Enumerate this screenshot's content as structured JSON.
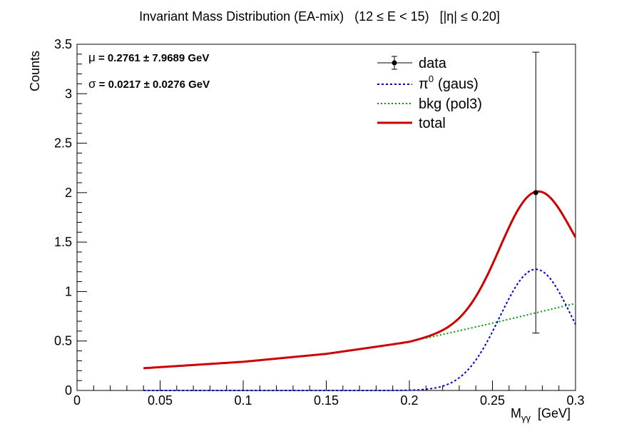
{
  "chart_data": {
    "type": "line",
    "title": "Invariant Mass Distribution (EA-mix)   (12 ≤ E < 15)   [|η| ≤ 0.20]",
    "xlabel_main": "M",
    "xlabel_sub": "γγ",
    "xlabel_unit": "[GeV]",
    "ylabel": "Counts",
    "xlim": [
      0,
      0.3
    ],
    "ylim": [
      0,
      3.5
    ],
    "x_ticks": [
      0,
      0.05,
      0.1,
      0.15,
      0.2,
      0.25,
      0.3
    ],
    "x_tick_labels": [
      "0",
      "0.05",
      "0.1",
      "0.15",
      "0.2",
      "0.25",
      "0.3"
    ],
    "y_ticks": [
      0,
      0.5,
      1,
      1.5,
      2,
      2.5,
      3,
      3.5
    ],
    "y_tick_labels": [
      "0",
      "0.5",
      "1",
      "1.5",
      "2",
      "2.5",
      "3",
      "3.5"
    ],
    "x_minor_step": 0.01,
    "y_minor_step": 0.1,
    "fit_range": [
      0.04,
      0.3
    ],
    "stats": {
      "mu_symbol": "μ",
      "mu_text": "= 0.2761 ± 7.9689 GeV",
      "sigma_symbol": "σ",
      "sigma_text": "= 0.0217  ± 0.0276 GeV"
    },
    "data_points": [
      {
        "x": 0.2761,
        "y": 2.0,
        "yerr_low": 1.42,
        "yerr_high": 1.42
      }
    ],
    "components": {
      "gaus": {
        "amplitude": 1.225,
        "mean": 0.2761,
        "sigma": 0.0217
      },
      "bkg_pol3_points": {
        "x": [
          0.04,
          0.1,
          0.15,
          0.2,
          0.25,
          0.3
        ],
        "y": [
          0.225,
          0.29,
          0.37,
          0.49,
          0.68,
          0.88
        ]
      }
    },
    "series": [
      {
        "key": "data",
        "name": "data",
        "color": "#000000",
        "style": "marker-errorbar"
      },
      {
        "key": "gaus",
        "name": "(gaus)",
        "symbol": "π",
        "superscript": "0",
        "color": "#0000cc",
        "style": "dotted"
      },
      {
        "key": "bkg",
        "name": "bkg (pol3)",
        "color": "#009900",
        "style": "dotted"
      },
      {
        "key": "total",
        "name": "total",
        "color": "#cc0000",
        "style": "solid"
      }
    ],
    "legend_position": "top-right",
    "grid": false
  }
}
